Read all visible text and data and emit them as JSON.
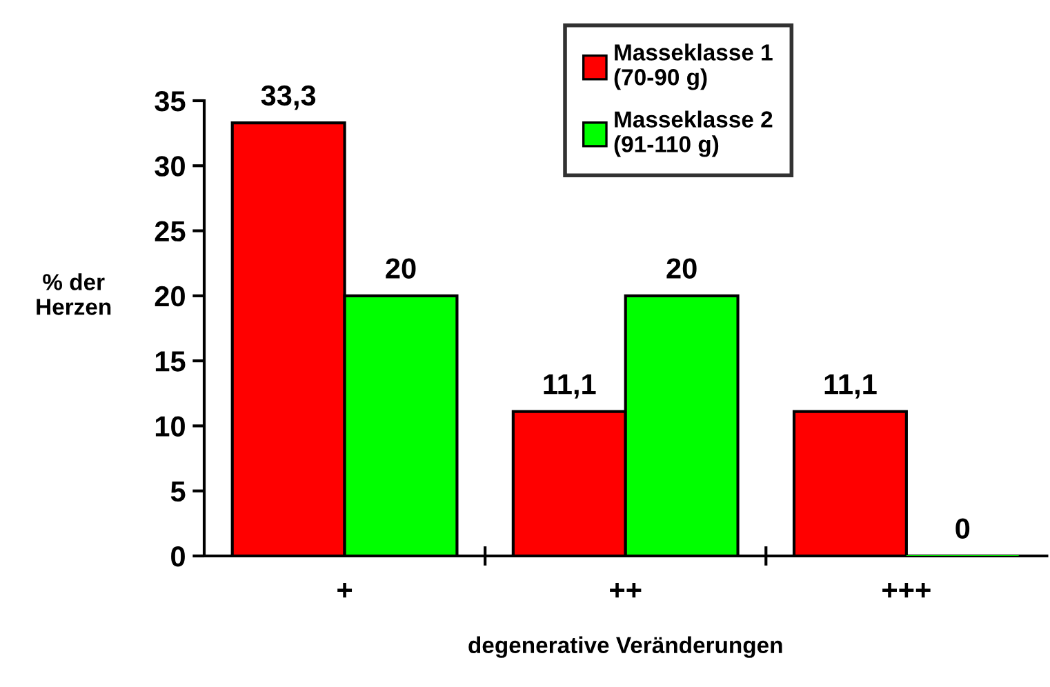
{
  "chart_data": {
    "type": "bar",
    "xlabel": "degenerative Veränderungen",
    "ylabel": "% der\nHerzen",
    "categories": [
      "+",
      "++",
      "+++"
    ],
    "series": [
      {
        "name": "Masseklasse 1\n(70-90 g)",
        "color": "#ff0000",
        "values": [
          33.3,
          11.1,
          11.1
        ],
        "value_labels": [
          "33,3",
          "11,1",
          "11,1"
        ]
      },
      {
        "name": "Masseklasse 2\n(91-110 g)",
        "color": "#00ff00",
        "values": [
          20,
          20,
          0
        ],
        "value_labels": [
          "20",
          "20",
          "0"
        ]
      }
    ],
    "ylim": [
      0,
      35
    ],
    "yticks": [
      0,
      5,
      10,
      15,
      20,
      25,
      30,
      35
    ],
    "grid": false,
    "legend": "top right"
  }
}
